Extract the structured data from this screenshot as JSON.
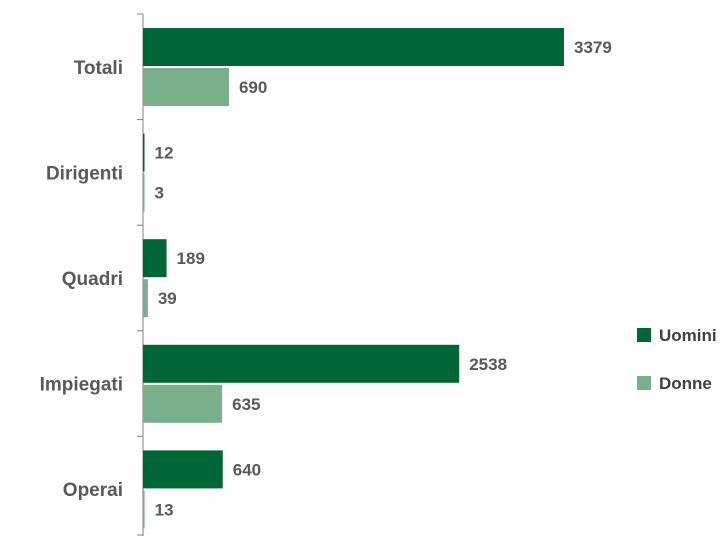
{
  "chart_data": {
    "type": "bar",
    "orientation": "horizontal",
    "title": "",
    "xlabel": "",
    "ylabel": "",
    "categories": [
      "Totali",
      "Dirigenti",
      "Quadri",
      "Impiegati",
      "Operai"
    ],
    "series": [
      {
        "name": "Uomini",
        "color": "#006633",
        "values": [
          3379,
          12,
          189,
          2538,
          640
        ]
      },
      {
        "name": "Donne",
        "color": "#7aaf8c",
        "values": [
          690,
          3,
          39,
          635,
          13
        ]
      }
    ],
    "xlim": [
      0,
      3379
    ],
    "grid": false,
    "legend": "right"
  }
}
